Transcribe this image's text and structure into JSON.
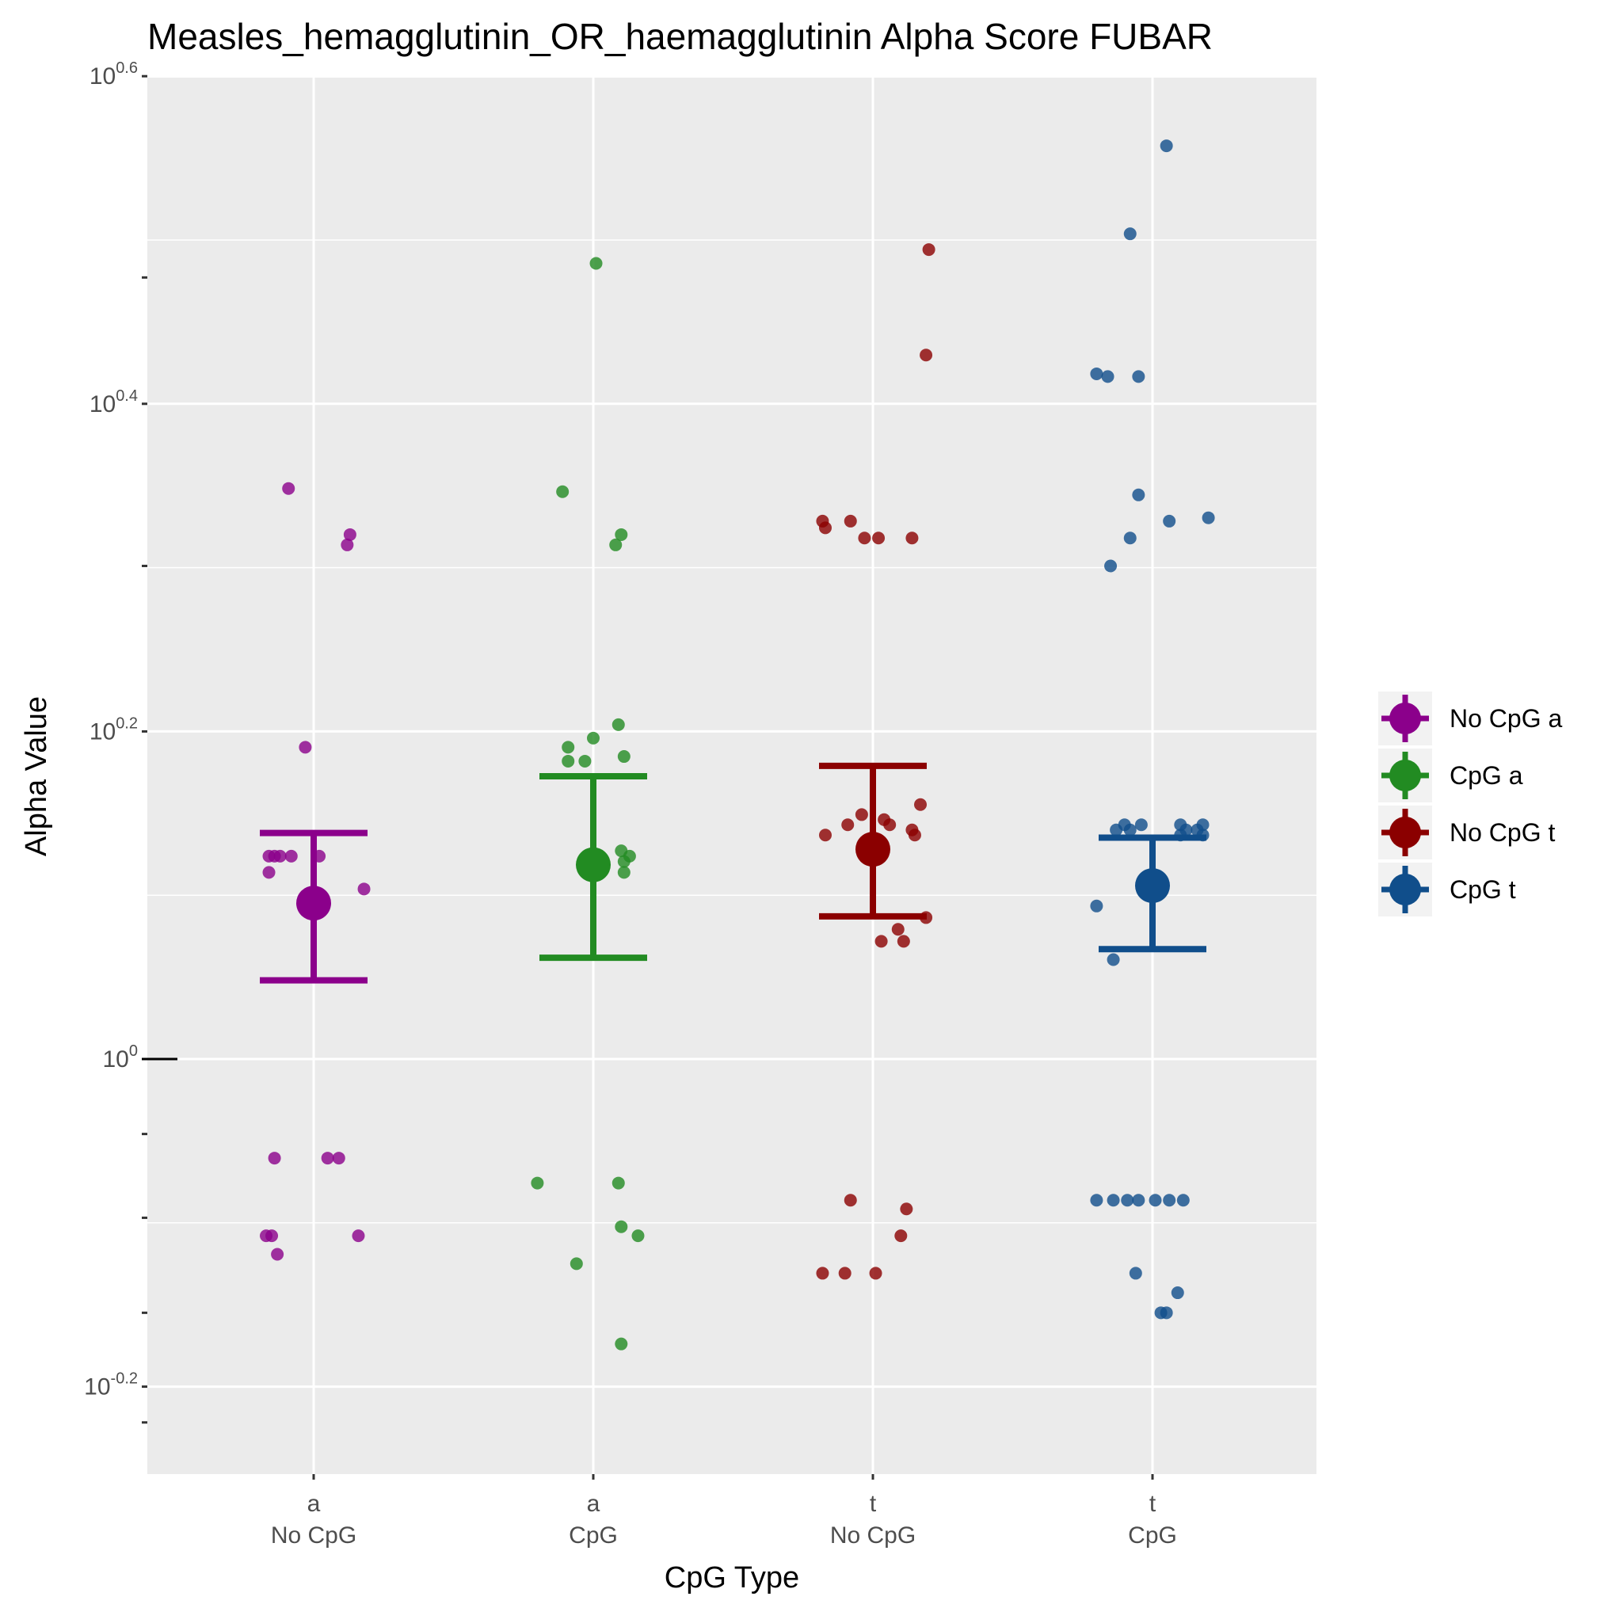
{
  "chart_data": {
    "type": "scatter",
    "title": "Measles_hemagglutinin_OR_haemagglutinin Alpha Score FUBAR",
    "xlabel": "CpG Type",
    "ylabel": "Alpha Value",
    "y_scale": "log10",
    "y_log_range": [
      -0.25,
      0.6
    ],
    "y_ticks": [
      {
        "base": "10",
        "exp": "0.6",
        "log": 0.6
      },
      {
        "base": "10",
        "exp": "0.4",
        "log": 0.4
      },
      {
        "base": "10",
        "exp": "0.2",
        "log": 0.2
      },
      {
        "base": "10",
        "exp": "0",
        "log": 0.0
      },
      {
        "base": "10",
        "exp": "-0.2",
        "log": -0.2
      }
    ],
    "grid": true,
    "legend_position": "right",
    "categories": [
      {
        "line1": "a",
        "line2": "No CpG"
      },
      {
        "line1": "a",
        "line2": "CpG"
      },
      {
        "line1": "t",
        "line2": "No CpG"
      },
      {
        "line1": "t",
        "line2": "CpG"
      }
    ],
    "series": [
      {
        "name": "No CpG a",
        "color": "#8b008b",
        "mean": 1.245,
        "ci_low": 1.117,
        "ci_high": 1.374,
        "points": [
          [
            -0.09,
            2.23
          ],
          [
            0.13,
            2.09
          ],
          [
            0.12,
            2.06
          ],
          [
            -0.03,
            1.55
          ],
          [
            -0.16,
            1.33
          ],
          [
            -0.14,
            1.33
          ],
          [
            -0.12,
            1.33
          ],
          [
            -0.08,
            1.33
          ],
          [
            0.02,
            1.33
          ],
          [
            -0.16,
            1.3
          ],
          [
            0.18,
            1.27
          ],
          [
            -0.14,
            0.87
          ],
          [
            0.05,
            0.87
          ],
          [
            0.09,
            0.87
          ],
          [
            -0.17,
            0.78
          ],
          [
            -0.15,
            0.78
          ],
          [
            0.16,
            0.78
          ],
          [
            -0.13,
            0.76
          ]
        ]
      },
      {
        "name": "CpG a",
        "color": "#228b22",
        "mean": 1.314,
        "ci_low": 1.153,
        "ci_high": 1.488,
        "points": [
          [
            0.01,
            3.06
          ],
          [
            0.08,
            2.06
          ],
          [
            0.1,
            2.09
          ],
          [
            -0.11,
            2.22
          ],
          [
            0.09,
            1.6
          ],
          [
            -0.09,
            1.55
          ],
          [
            0.0,
            1.57
          ],
          [
            0.11,
            1.53
          ],
          [
            -0.09,
            1.52
          ],
          [
            -0.03,
            1.52
          ],
          [
            0.1,
            1.34
          ],
          [
            0.13,
            1.33
          ],
          [
            0.11,
            1.32
          ],
          [
            0.11,
            1.3
          ],
          [
            -0.2,
            0.84
          ],
          [
            0.09,
            0.84
          ],
          [
            0.1,
            0.79
          ],
          [
            0.16,
            0.78
          ],
          [
            -0.06,
            0.75
          ],
          [
            0.1,
            0.67
          ]
        ]
      },
      {
        "name": "No CpG t",
        "color": "#8b0000",
        "mean": 1.343,
        "ci_low": 1.222,
        "ci_high": 1.51,
        "points": [
          [
            0.2,
            3.12
          ],
          [
            0.19,
            2.69
          ],
          [
            -0.18,
            2.13
          ],
          [
            -0.08,
            2.13
          ],
          [
            -0.17,
            2.11
          ],
          [
            -0.03,
            2.08
          ],
          [
            0.02,
            2.08
          ],
          [
            0.14,
            2.08
          ],
          [
            0.17,
            1.43
          ],
          [
            -0.04,
            1.41
          ],
          [
            0.04,
            1.4
          ],
          [
            0.06,
            1.39
          ],
          [
            0.14,
            1.38
          ],
          [
            -0.09,
            1.39
          ],
          [
            -0.17,
            1.37
          ],
          [
            0.15,
            1.37
          ],
          [
            0.19,
            1.22
          ],
          [
            0.09,
            1.2
          ],
          [
            0.03,
            1.18
          ],
          [
            0.11,
            1.18
          ],
          [
            -0.08,
            0.82
          ],
          [
            0.12,
            0.81
          ],
          [
            0.1,
            0.78
          ],
          [
            -0.18,
            0.74
          ],
          [
            -0.1,
            0.74
          ],
          [
            0.01,
            0.74
          ]
        ]
      },
      {
        "name": "CpG t",
        "color": "#104e8b",
        "mean": 1.276,
        "ci_low": 1.167,
        "ci_high": 1.365,
        "points": [
          [
            0.05,
            3.61
          ],
          [
            -0.08,
            3.19
          ],
          [
            -0.2,
            2.62
          ],
          [
            -0.16,
            2.61
          ],
          [
            -0.05,
            2.61
          ],
          [
            -0.05,
            2.21
          ],
          [
            0.06,
            2.13
          ],
          [
            0.2,
            2.14
          ],
          [
            -0.08,
            2.08
          ],
          [
            -0.15,
            2.0
          ],
          [
            -0.1,
            1.39
          ],
          [
            -0.13,
            1.38
          ],
          [
            -0.08,
            1.38
          ],
          [
            -0.04,
            1.39
          ],
          [
            0.1,
            1.39
          ],
          [
            0.12,
            1.38
          ],
          [
            0.1,
            1.37
          ],
          [
            0.16,
            1.38
          ],
          [
            0.18,
            1.39
          ],
          [
            0.18,
            1.37
          ],
          [
            -0.2,
            1.24
          ],
          [
            -0.14,
            1.15
          ],
          [
            -0.2,
            0.82
          ],
          [
            -0.14,
            0.82
          ],
          [
            -0.09,
            0.82
          ],
          [
            -0.05,
            0.82
          ],
          [
            0.01,
            0.82
          ],
          [
            0.06,
            0.82
          ],
          [
            0.11,
            0.82
          ],
          [
            -0.06,
            0.74
          ],
          [
            0.09,
            0.72
          ],
          [
            0.03,
            0.7
          ],
          [
            0.05,
            0.7
          ]
        ]
      }
    ]
  }
}
